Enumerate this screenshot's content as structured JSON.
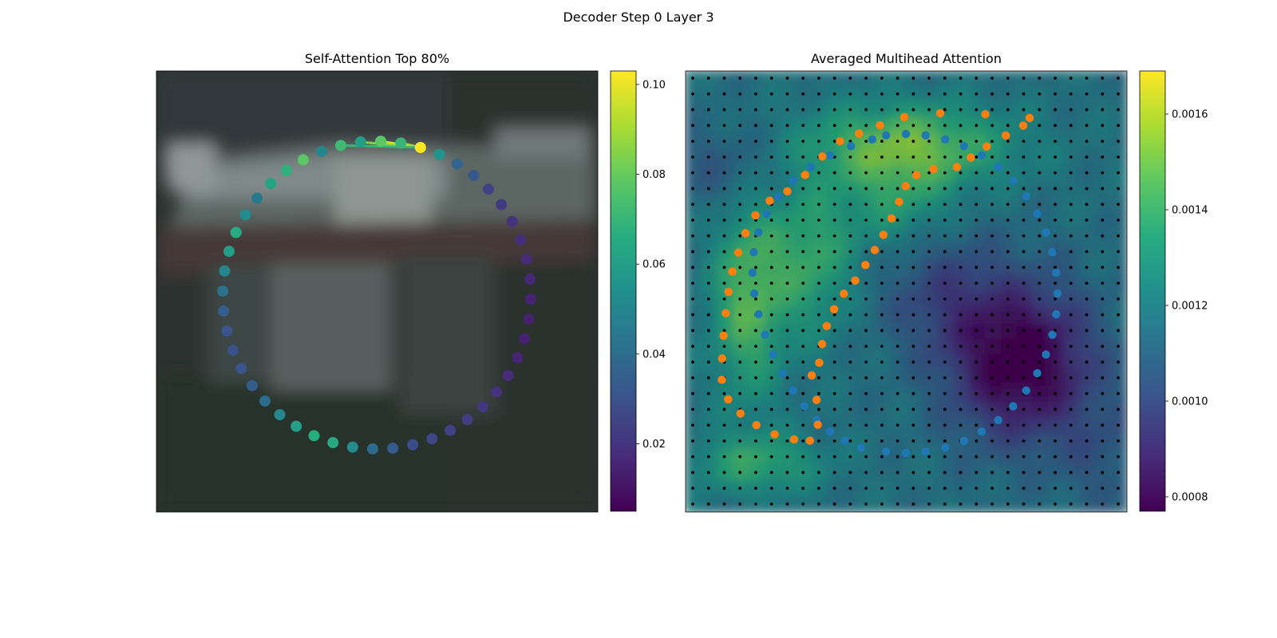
{
  "figure": {
    "title": "Decoder Step 0 Layer 3"
  },
  "chart_data": [
    {
      "type": "scatter",
      "title": "Self-Attention Top 80%",
      "background": "blurred camera image (dark vehicle / street scene)",
      "colormap": "viridis",
      "colorbar": {
        "range": [
          0.005,
          0.103
        ],
        "ticks": [
          0.02,
          0.04,
          0.06,
          0.08,
          0.1
        ],
        "tick_labels": [
          "0.02",
          "0.04",
          "0.06",
          "0.08",
          "0.10"
        ]
      },
      "points_on_circle": 48,
      "query_point_index": 0,
      "attention_values": [
        0.103,
        0.056,
        0.037,
        0.032,
        0.025,
        0.022,
        0.02,
        0.018,
        0.017,
        0.016,
        0.015,
        0.014,
        0.014,
        0.015,
        0.017,
        0.019,
        0.021,
        0.023,
        0.025,
        0.026,
        0.028,
        0.033,
        0.04,
        0.052,
        0.064,
        0.066,
        0.06,
        0.05,
        0.04,
        0.034,
        0.031,
        0.03,
        0.031,
        0.035,
        0.042,
        0.05,
        0.06,
        0.066,
        0.052,
        0.045,
        0.062,
        0.068,
        0.078,
        0.05,
        0.072,
        0.06,
        0.078,
        0.07
      ],
      "top_links": [
        {
          "to": 45,
          "weight": 0.085
        },
        {
          "to": 46,
          "weight": 0.095
        },
        {
          "to": 47,
          "weight": 0.09
        },
        {
          "to": 44,
          "weight": 0.07
        }
      ]
    },
    {
      "type": "heatmap",
      "title": "Averaged Multihead Attention",
      "colormap": "viridis",
      "grid_size": [
        28,
        28
      ],
      "colorbar": {
        "range": [
          0.00077,
          0.00169
        ],
        "ticks": [
          0.0008,
          0.001,
          0.0012,
          0.0014,
          0.0016
        ],
        "tick_labels": [
          "0.0008",
          "0.0010",
          "0.0012",
          "0.0014",
          "0.0016"
        ]
      },
      "overlays": [
        {
          "name": "reference points",
          "marker": "small black dots",
          "color": "#000000"
        },
        {
          "name": "contour A",
          "color": "#1f77b4",
          "points": 48
        },
        {
          "name": "contour B",
          "color": "#ff7f0e",
          "points": 48
        }
      ]
    }
  ]
}
